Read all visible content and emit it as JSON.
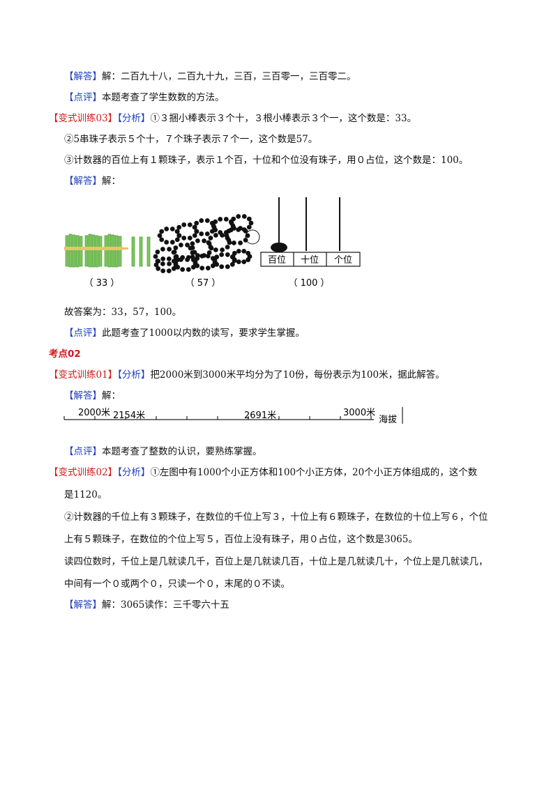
{
  "labels": {
    "jieda": "【解答】",
    "dianping": "【点评】",
    "fenxi": "【分析】",
    "bianshi03": "【变式训练03】",
    "bianshi01": "【变式训练01】",
    "bianshi02": "【变式训练02】"
  },
  "lines": {
    "l1": "解：二百九十八，二百九十九，三百，三百零一，三百零二。",
    "l2": "本题考查了学生数数的方法。",
    "l3": "①３捆小棒表示３个十，３根小棒表示３个一，这个数是：33。",
    "l4": "②5串珠子表示５个十，７个珠子表示７个一，这个数是57。",
    "l5": "③计数器的百位上有１颗珠子，表示１个百，十位和个位没有珠子，用０占位，这个数是：100。",
    "l6": "解：",
    "l7": "故答案为：33，57，100。",
    "l8": "此题考查了1000以内数的读写，要求学生掌握。",
    "heading": "考点02",
    "l9": "把2000米到3000米平均分为了10份，每份表示为100米，据此解答。",
    "l10": "解：",
    "l11": "本题考查了整数的认识，要熟练掌握。",
    "l12": "①左图中有1000个小正方体和100个小正方体，20个小正方体组成的，这个数",
    "l13": "是1120。",
    "l14": "②计数器的千位上有３颗珠子，在数位的千位上写３，十位上有６颗珠子，在数位的十位上写６，个位",
    "l15": "上有５颗珠子，在数位的个位上写５，百位上没有珠子，用０占位，这个数是3065。",
    "l16": "读四位数时，千位上是几就读几千，百位上是几就读几百，十位上是几就读几十，个位上是几就读几，",
    "l17": "中间有一个０或两个０，只读一个０，末尾的０不读。",
    "l18": "解：3065读作：三千零六十五"
  },
  "figure1": {
    "caption_sticks": "（ 33 ）",
    "caption_beads": "（ 57 ）",
    "caption_abacus": "（ 100 ）",
    "col_hundreds": "百位",
    "col_tens": "十位",
    "col_ones": "个位"
  },
  "figure2": {
    "mark_2000": "2000米",
    "mark_2154": "2154米",
    "mark_2691": "2691米",
    "mark_3000": "3000米",
    "end_label": "海拔"
  }
}
